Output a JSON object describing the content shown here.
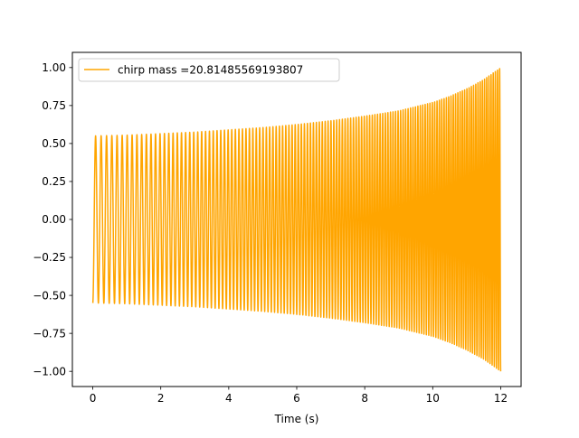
{
  "chart_data": {
    "type": "line",
    "title": "",
    "xlabel": "Time (s)",
    "ylabel": "",
    "xlim": [
      -0.6,
      12.6
    ],
    "ylim": [
      -1.1,
      1.1
    ],
    "x_ticks": [
      0,
      2,
      4,
      6,
      8,
      10,
      12
    ],
    "x_tick_labels": [
      "0",
      "2",
      "4",
      "6",
      "8",
      "10",
      "12"
    ],
    "y_ticks": [
      -1.0,
      -0.75,
      -0.5,
      -0.25,
      0.0,
      0.25,
      0.5,
      0.75,
      1.0
    ],
    "y_tick_labels": [
      "−1.00",
      "−0.75",
      "−0.50",
      "−0.25",
      "0.00",
      "0.25",
      "0.50",
      "0.75",
      "1.00"
    ],
    "grid": false,
    "legend_position": "upper-left",
    "series": [
      {
        "name": "chirp mass =20.81485569193807",
        "color": "#ffa500",
        "x": [
          0,
          1,
          2,
          3,
          4,
          5,
          6,
          7,
          8,
          9,
          10,
          10.5,
          11,
          11.5,
          12
        ],
        "envelope": [
          0.55,
          0.555,
          0.565,
          0.575,
          0.59,
          0.605,
          0.625,
          0.65,
          0.68,
          0.715,
          0.77,
          0.81,
          0.86,
          0.92,
          1.0
        ],
        "start_frequency_hz": 6,
        "end_frequency_hz": 16
      }
    ]
  }
}
